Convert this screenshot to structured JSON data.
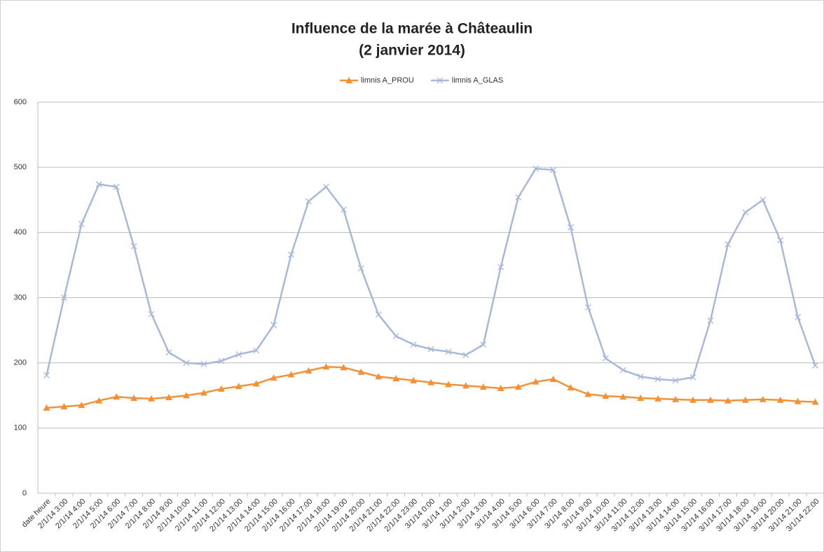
{
  "chart_data": {
    "type": "line",
    "title": "Influence de la marée à Châteaulin",
    "subtitle": "(2 janvier 2014)",
    "categories": [
      "date heure",
      "2/1/14 3:00",
      "2/1/14 4:00",
      "2/1/14 5:00",
      "2/1/14 6:00",
      "2/1/14 7:00",
      "2/1/14 8:00",
      "2/1/14 9:00",
      "2/1/14 10:00",
      "2/1/14 11:00",
      "2/1/14 12:00",
      "2/1/14 13:00",
      "2/1/14 14:00",
      "2/1/14 15:00",
      "2/1/14 16:00",
      "2/1/14 17:00",
      "2/1/14 18:00",
      "2/1/14 19:00",
      "2/1/14 20:00",
      "2/1/14 21:00",
      "2/1/14 22:00",
      "2/1/14 23:00",
      "3/1/14 0:00",
      "3/1/14 1:00",
      "3/1/14 2:00",
      "3/1/14 3:00",
      "3/1/14 4:00",
      "3/1/14 5:00",
      "3/1/14 6:00",
      "3/1/14 7:00",
      "3/1/14 8:00",
      "3/1/14 9:00",
      "3/1/14 10:00",
      "3/1/14 11:00",
      "3/1/14 12:00",
      "3/1/14 13:00",
      "3/1/14 14:00",
      "3/1/14 15:00",
      "3/1/14 16:00",
      "3/1/14 17:00",
      "3/1/14 18:00",
      "3/1/14 19:00",
      "3/1/14 20:00",
      "3/1/14 21:00",
      "3/1/14 22:00"
    ],
    "series": [
      {
        "name": "limnis A_PROU",
        "color": "#f39139",
        "marker": "triangle",
        "values": [
          131,
          133,
          135,
          142,
          148,
          146,
          145,
          147,
          150,
          154,
          160,
          164,
          168,
          177,
          182,
          188,
          194,
          193,
          186,
          179,
          176,
          173,
          170,
          167,
          165,
          163,
          161,
          163,
          171,
          175,
          162,
          152,
          149,
          148,
          146,
          145,
          144,
          143,
          143,
          142,
          143,
          144,
          143,
          141,
          140
        ]
      },
      {
        "name": "limnis A_GLAS",
        "color": "#a7b8d8",
        "marker": "x",
        "values": [
          181,
          300,
          413,
          474,
          470,
          379,
          275,
          216,
          200,
          198,
          203,
          213,
          219,
          258,
          366,
          448,
          470,
          435,
          345,
          274,
          241,
          228,
          221,
          217,
          212,
          228,
          347,
          454,
          498,
          496,
          408,
          285,
          207,
          189,
          179,
          175,
          173,
          178,
          265,
          382,
          431,
          450,
          388,
          270,
          196
        ]
      }
    ],
    "ylim": [
      0,
      600
    ],
    "yticks": [
      0,
      100,
      200,
      300,
      400,
      500,
      600
    ],
    "grid": true,
    "legend": "top"
  }
}
